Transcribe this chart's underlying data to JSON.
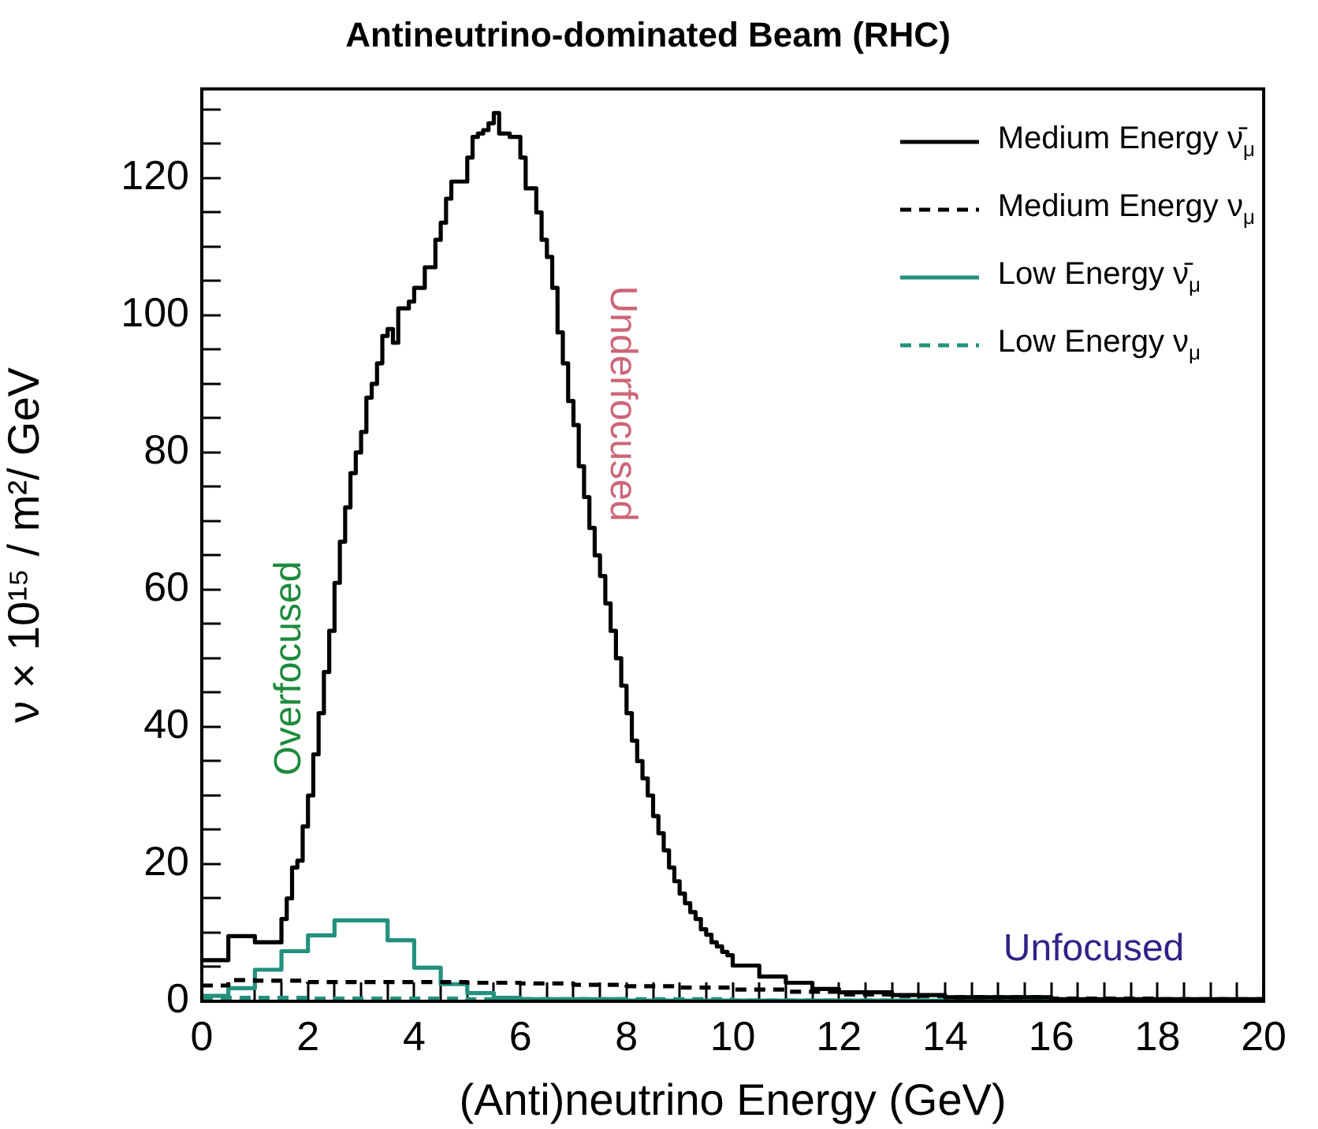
{
  "chart_data": {
    "type": "step",
    "title": "Antineutrino-dominated Beam (RHC)",
    "xlabel": "(Anti)neutrino Energy (GeV)",
    "ylabel": "ν × 10¹⁵ / m²/ GeV",
    "xlim": [
      0,
      20
    ],
    "ylim": [
      0,
      133
    ],
    "xticks": [
      0,
      {
        "value": 0.5,
        "label": null
      },
      {
        "value": 1,
        "label": null
      },
      {
        "value": 1.5,
        "label": null
      },
      2,
      {
        "value": 2.5,
        "label": null
      },
      {
        "value": 3,
        "label": null
      },
      {
        "value": 3.5,
        "label": null
      },
      4,
      {
        "value": 4.5,
        "label": null
      },
      {
        "value": 5,
        "label": null
      },
      {
        "value": 5.5,
        "label": null
      },
      6,
      {
        "value": 6.5,
        "label": null
      },
      {
        "value": 7,
        "label": null
      },
      {
        "value": 7.5,
        "label": null
      },
      8,
      {
        "value": 8.5,
        "label": null
      },
      {
        "value": 9,
        "label": null
      },
      {
        "value": 9.5,
        "label": null
      },
      10,
      {
        "value": 10.5,
        "label": null
      },
      {
        "value": 11,
        "label": null
      },
      {
        "value": 11.5,
        "label": null
      },
      12,
      {
        "value": 12.5,
        "label": null
      },
      {
        "value": 13,
        "label": null
      },
      {
        "value": 13.5,
        "label": null
      },
      14,
      {
        "value": 14.5,
        "label": null
      },
      {
        "value": 15,
        "label": null
      },
      {
        "value": 15.5,
        "label": null
      },
      16,
      {
        "value": 16.5,
        "label": null
      },
      {
        "value": 17,
        "label": null
      },
      {
        "value": 17.5,
        "label": null
      },
      18,
      {
        "value": 18.5,
        "label": null
      },
      {
        "value": 19,
        "label": null
      },
      {
        "value": 19.5,
        "label": null
      },
      20
    ],
    "yticks": [
      0,
      {
        "value": 5,
        "label": null
      },
      {
        "value": 10,
        "label": null
      },
      {
        "value": 15,
        "label": null
      },
      20,
      {
        "value": 25,
        "label": null
      },
      {
        "value": 30,
        "label": null
      },
      {
        "value": 35,
        "label": null
      },
      40,
      {
        "value": 45,
        "label": null
      },
      {
        "value": 50,
        "label": null
      },
      {
        "value": 55,
        "label": null
      },
      60,
      {
        "value": 65,
        "label": null
      },
      {
        "value": 70,
        "label": null
      },
      {
        "value": 75,
        "label": null
      },
      80,
      {
        "value": 85,
        "label": null
      },
      {
        "value": 90,
        "label": null
      },
      {
        "value": 95,
        "label": null
      },
      100,
      {
        "value": 105,
        "label": null
      },
      {
        "value": 110,
        "label": null
      },
      {
        "value": 115,
        "label": null
      },
      120,
      {
        "value": 125,
        "label": null
      },
      {
        "value": 130,
        "label": null
      }
    ],
    "grid": false,
    "legend": "top right",
    "series": [
      {
        "name": "Medium Energy ν̄$_{μ}$",
        "color": "#000000",
        "line_style": "solid",
        "x": [
          0,
          0.5,
          1,
          1.5,
          1.6,
          1.7,
          1.8,
          1.9,
          2,
          2.1,
          2.2,
          2.3,
          2.4,
          2.5,
          2.6,
          2.7,
          2.8,
          2.9,
          3,
          3.1,
          3.2,
          3.3,
          3.4,
          3.5,
          3.6,
          3.7,
          3.8,
          3.9,
          4,
          4.1,
          4.2,
          4.3,
          4.4,
          4.5,
          4.6,
          4.7,
          4.8,
          4.9,
          5,
          5.1,
          5.2,
          5.3,
          5.4,
          5.5,
          5.6,
          5.7,
          5.8,
          5.9,
          6,
          6.1,
          6.2,
          6.3,
          6.4,
          6.5,
          6.6,
          6.7,
          6.8,
          6.9,
          7,
          7.1,
          7.2,
          7.3,
          7.4,
          7.5,
          7.6,
          7.7,
          7.8,
          7.9,
          8,
          8.1,
          8.2,
          8.3,
          8.4,
          8.5,
          8.6,
          8.7,
          8.8,
          8.9,
          9,
          9.1,
          9.2,
          9.3,
          9.4,
          9.5,
          9.6,
          9.7,
          9.8,
          9.9,
          10,
          10.5,
          11,
          11.5,
          12,
          13,
          14,
          16,
          20
        ],
        "values": [
          6,
          9.5,
          8.6,
          12,
          15,
          19.5,
          20.5,
          25.5,
          30,
          36,
          42,
          48,
          54,
          61,
          67,
          72,
          77,
          80,
          83,
          88,
          90,
          93,
          97,
          98,
          96,
          101,
          101,
          102,
          104,
          104,
          107,
          107,
          111,
          113.5,
          117,
          119.5,
          119.5,
          119.5,
          123,
          126,
          126.5,
          127,
          128,
          129.5,
          126.5,
          126.5,
          126,
          126,
          123,
          118.5,
          118.5,
          115,
          111,
          108.5,
          104,
          97.5,
          93,
          87.5,
          84,
          78,
          73.5,
          69,
          65,
          62,
          58,
          54,
          50,
          46,
          42,
          38,
          35,
          32.5,
          30,
          27,
          24.5,
          22,
          19.5,
          17.5,
          15.7,
          14.3,
          13,
          12,
          10.5,
          9.7,
          8.6,
          8,
          7.2,
          6.7,
          5.2,
          3.6,
          2.7,
          1.8,
          1.3,
          0.9,
          0.6,
          0.3,
          0.3
        ]
      },
      {
        "name": "Medium Energy ν$_{μ}$",
        "color": "#000000",
        "line_style": "dashed",
        "x": [
          0,
          0.5,
          1,
          2,
          3,
          4,
          5,
          6,
          7,
          8,
          9,
          10,
          11,
          12,
          13,
          14,
          16,
          18,
          20
        ],
        "values": [
          2.3,
          3.1,
          3,
          2.8,
          2.8,
          2.8,
          2.7,
          2.6,
          2.4,
          2.2,
          2,
          1.7,
          1.4,
          1,
          0.8,
          0.6,
          0.4,
          0.3,
          0.3
        ]
      },
      {
        "name": "Low Energy ν̄$_{μ}$",
        "color": "#23917e",
        "line_style": "solid",
        "x": [
          0,
          0.5,
          1,
          1.5,
          2,
          2.5,
          3.5,
          4,
          4.5,
          5,
          5.5,
          6,
          8,
          20
        ],
        "values": [
          0.8,
          1.9,
          4.6,
          7.3,
          9.6,
          11.8,
          8.9,
          4.9,
          2.5,
          1.2,
          0.5,
          0.3,
          0.1,
          0.1
        ]
      },
      {
        "name": "Low Energy ν$_{μ}$",
        "color": "#23917e",
        "line_style": "dashed",
        "x": [
          0,
          2,
          5,
          10,
          20
        ],
        "values": [
          0.5,
          0.4,
          0.3,
          0.1,
          0.1
        ]
      }
    ],
    "annotations": [
      "Overfocused",
      "Underfocused",
      "Unfocused"
    ]
  }
}
